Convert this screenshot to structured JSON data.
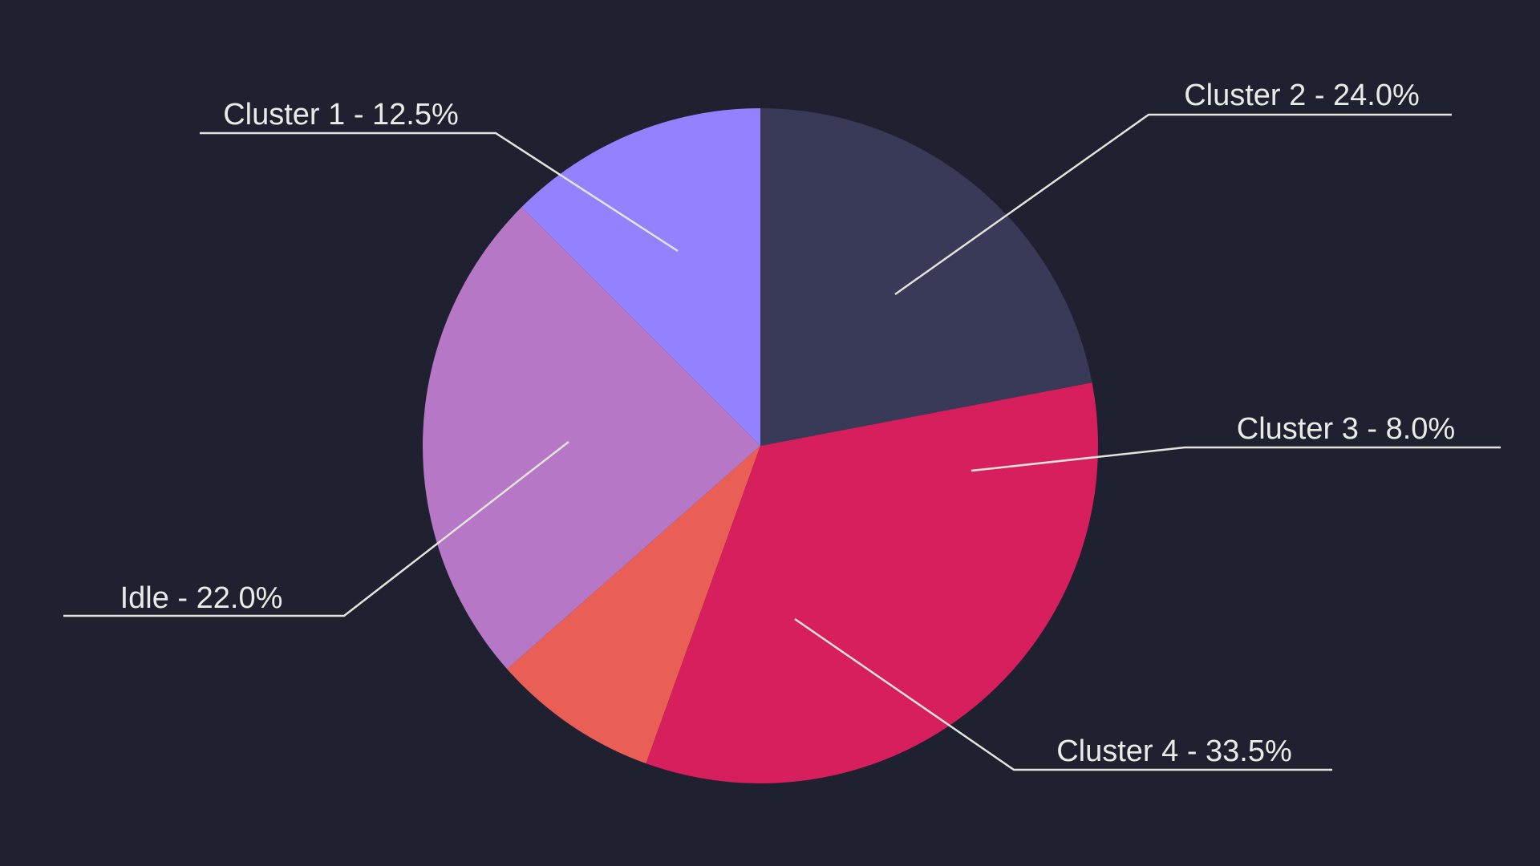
{
  "chart_data": {
    "type": "pie",
    "slices": [
      {
        "label": "Cluster 1",
        "value": 12.5,
        "display": "Cluster 1 - 12.5%",
        "color": "#9282fe"
      },
      {
        "label": "Cluster 2",
        "value": 24.0,
        "display": "Cluster 2 - 24.0%",
        "color": "#b677c6"
      },
      {
        "label": "Cluster 3",
        "value": 8.0,
        "display": "Cluster 3 - 8.0%",
        "color": "#ea5f55"
      },
      {
        "label": "Cluster 4",
        "value": 33.5,
        "display": "Cluster 4 - 33.5%",
        "color": "#d71f5d"
      },
      {
        "label": "Idle",
        "value": 22.0,
        "display": "Idle - 22.0%",
        "color": "#393a58"
      }
    ],
    "start_angle": "12 o'clock",
    "direction": "counterclockwise from Cluster 1",
    "background_color": "#202130",
    "label_color": "#e8ece6"
  }
}
